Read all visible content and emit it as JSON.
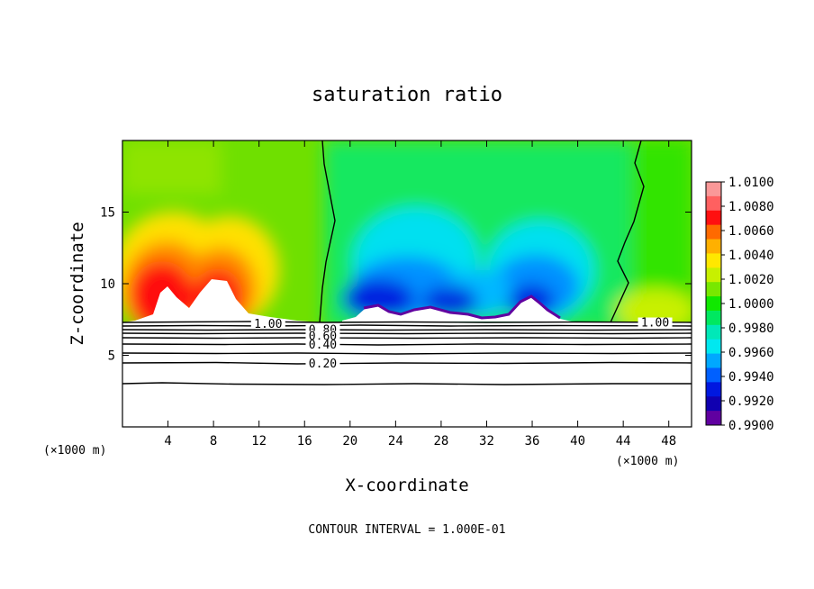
{
  "chart_data": {
    "type": "heatmap",
    "title": "saturation ratio",
    "xlabel": "X-coordinate",
    "ylabel": "Z-coordinate",
    "x_unit_left": "(×1000 m)",
    "x_unit_right": "(×1000 m)",
    "xlim": [
      0,
      50
    ],
    "ylim": [
      0,
      20
    ],
    "xticks": [
      4,
      8,
      12,
      16,
      20,
      24,
      28,
      32,
      36,
      40,
      44,
      48
    ],
    "yticks": [
      5,
      10,
      15
    ],
    "footer": "CONTOUR INTERVAL = 1.000E-01",
    "colorbar": {
      "labels": [
        "1.0100",
        "1.0080",
        "1.0060",
        "1.0040",
        "1.0020",
        "1.0000",
        "0.9980",
        "0.9960",
        "0.9940",
        "0.9920",
        "0.9900"
      ],
      "colors": [
        "#fa9898",
        "#ff6060",
        "#ff1010",
        "#ff6a00",
        "#ffb000",
        "#ffe800",
        "#c8f000",
        "#78e800",
        "#10e800",
        "#00e860",
        "#00e8b8",
        "#00e8f0",
        "#00a8ff",
        "#0060ff",
        "#0018e0",
        "#1000b0",
        "#6000a0"
      ]
    },
    "contour_labels": [
      {
        "text": "1.00",
        "x": 12.8,
        "z": 7.1
      },
      {
        "text": "0.80",
        "x": 17.6,
        "z": 6.7
      },
      {
        "text": "0.60",
        "x": 17.6,
        "z": 6.25
      },
      {
        "text": "0.40",
        "x": 17.6,
        "z": 5.65
      },
      {
        "text": "0.20",
        "x": 17.6,
        "z": 4.35
      },
      {
        "text": "1.00",
        "x": 46.8,
        "z": 7.2
      }
    ],
    "boundary_line_x": {
      "z": [
        7.4,
        9,
        11,
        12.8,
        14.5,
        16.2,
        18,
        20
      ],
      "left": [
        17.6,
        17.9,
        18.3,
        18.3,
        18.4,
        18.2,
        17.9,
        17.7
      ],
      "right": [
        42.4,
        43.1,
        43.7,
        43.5,
        44.3,
        45.0,
        45.3,
        45.5
      ]
    }
  }
}
